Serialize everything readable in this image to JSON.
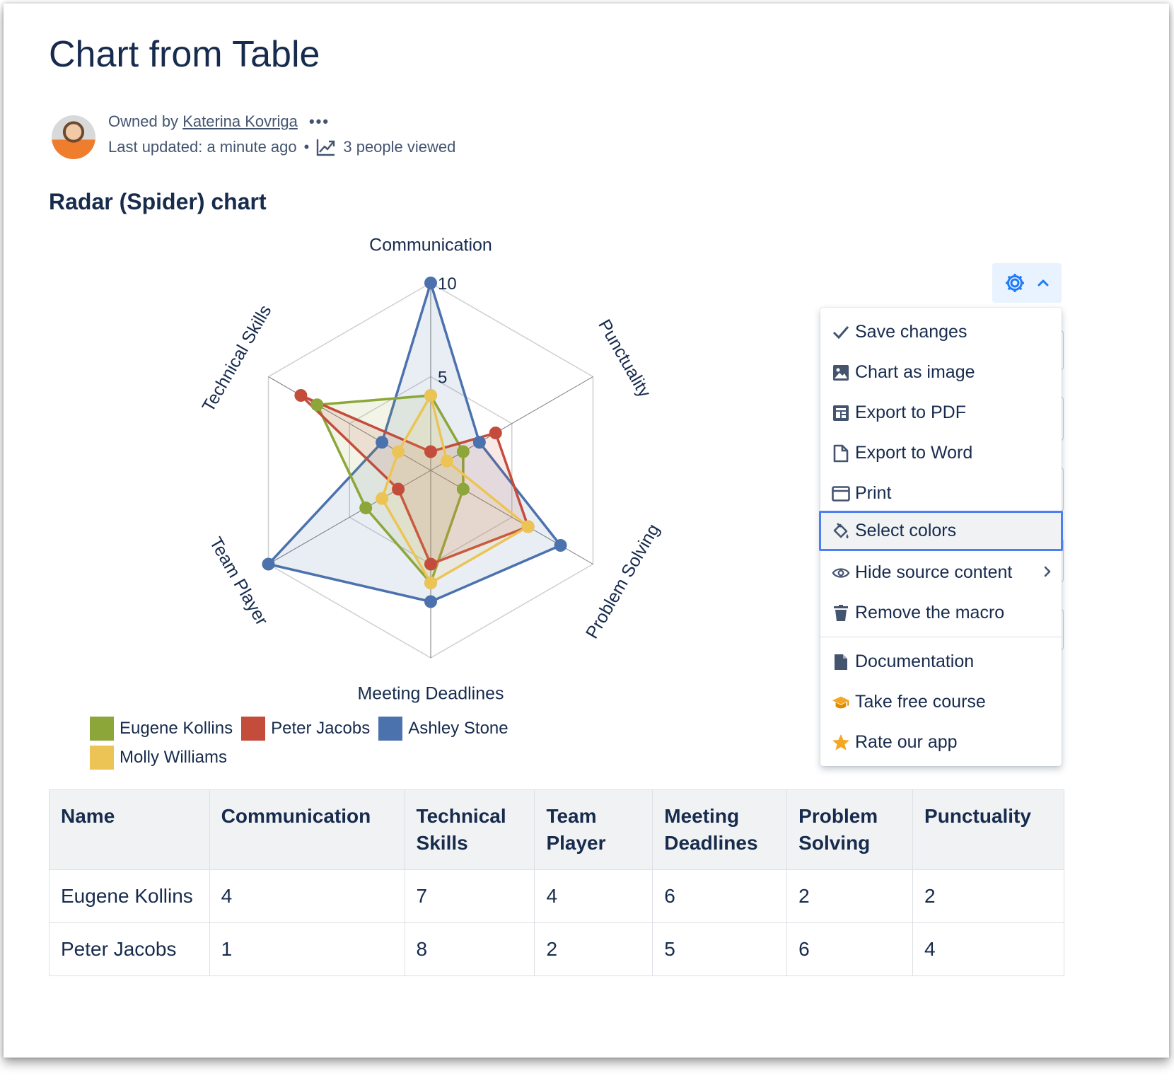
{
  "page": {
    "title": "Chart from Table",
    "owner_prefix": "Owned by",
    "owner_name": "Katerina Kovriga",
    "more": "•••",
    "last_updated": "Last updated: a minute ago",
    "separator": "•",
    "views": "3 people viewed",
    "section_title": "Radar (Spider) chart"
  },
  "chart_data": {
    "type": "radar",
    "axes": [
      "Communication",
      "Punctuality",
      "Problem Solving",
      "Meeting Deadlines",
      "Team Player",
      "Technical Skills"
    ],
    "tick_labels": [
      "5",
      "10"
    ],
    "range": [
      0,
      10
    ],
    "grid": true,
    "legend_position": "bottom-left",
    "series": [
      {
        "name": "Eugene Kollins",
        "color": "#8ca63a",
        "values": [
          4,
          2,
          2,
          6,
          4,
          7
        ]
      },
      {
        "name": "Peter Jacobs",
        "color": "#c44c3b",
        "values": [
          1,
          4,
          6,
          5,
          2,
          8
        ]
      },
      {
        "name": "Ashley Stone",
        "color": "#4b72ad",
        "values": [
          10,
          3,
          8,
          7,
          10,
          3
        ]
      },
      {
        "name": "Molly Williams",
        "color": "#ecc456",
        "values": [
          4,
          1,
          6,
          6,
          3,
          2
        ]
      }
    ]
  },
  "menu": {
    "items": [
      {
        "label": "Save changes",
        "icon": "check-icon"
      },
      {
        "label": "Chart as image",
        "icon": "image-icon"
      },
      {
        "label": "Export to PDF",
        "icon": "pdf-icon"
      },
      {
        "label": "Export to Word",
        "icon": "document-icon"
      },
      {
        "label": "Print",
        "icon": "print-icon"
      },
      {
        "label": "Select colors",
        "icon": "paint-bucket-icon"
      },
      {
        "label": "Hide source content",
        "icon": "eye-icon"
      },
      {
        "label": "Remove the macro",
        "icon": "trash-icon"
      },
      {
        "label": "Documentation",
        "icon": "file-icon"
      },
      {
        "label": "Take free course",
        "icon": "graduation-cap-icon"
      },
      {
        "label": "Rate our app",
        "icon": "star-icon"
      }
    ]
  },
  "table": {
    "headers": [
      "Name",
      "Communication",
      "Technical Skills",
      "Team Player",
      "Meeting Deadlines",
      "Problem Solving",
      "Punctuality"
    ],
    "rows": [
      [
        "Eugene Kollins",
        "4",
        "7",
        "4",
        "6",
        "2",
        "2"
      ],
      [
        "Peter Jacobs",
        "1",
        "8",
        "2",
        "5",
        "6",
        "4"
      ]
    ]
  },
  "colors": {
    "accent": "#4c7ff0",
    "gear": "#1d7afc",
    "text": "#172b4d",
    "muted": "#44546f"
  }
}
